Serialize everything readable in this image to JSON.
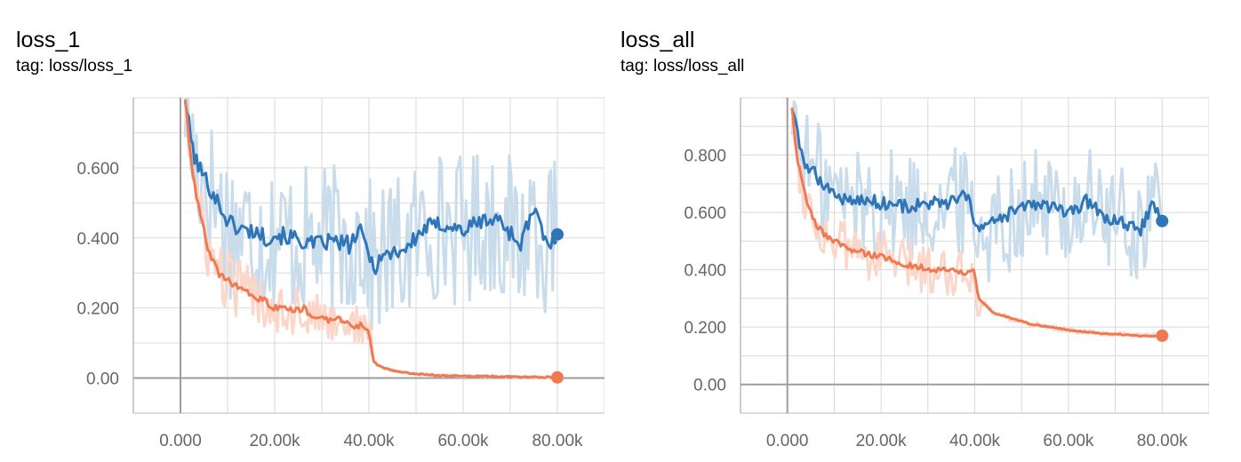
{
  "colors": {
    "blue": "#2f76b8",
    "blue_light": "#c9dcec",
    "orange": "#ef7a52",
    "orange_light": "#fcd6c8",
    "grid": "#d9d9d9",
    "zero_axis": "#9e9e9e",
    "axis": "#bbbbbb",
    "tick_text": "#666666"
  },
  "chart_data": [
    {
      "type": "line",
      "title": "loss_1",
      "subtitle": "tag: loss/loss_1",
      "xlabel": "",
      "ylabel": "",
      "xlim": [
        -10000,
        90000
      ],
      "ylim": [
        -0.1,
        0.8
      ],
      "xticks": [
        0,
        20000,
        40000,
        60000,
        80000
      ],
      "xtick_labels": [
        "0.000",
        "20.00k",
        "40.00k",
        "60.00k",
        "80.00k"
      ],
      "yticks": [
        0,
        0.2,
        0.4,
        0.6
      ],
      "ytick_labels": [
        "0.00",
        "0.200",
        "0.400",
        "0.600"
      ],
      "grid": true,
      "legend": "none",
      "series": [
        {
          "color": "#2f76b8",
          "raw_color": "#c9dcec",
          "x": [
            1000,
            2000,
            3000,
            4000,
            6000,
            8000,
            10000,
            12000,
            14000,
            16000,
            18000,
            20000,
            24000,
            28000,
            32000,
            36000,
            38000,
            40000,
            41000,
            42000,
            45000,
            48000,
            52000,
            56000,
            60000,
            64000,
            68000,
            72000,
            75000,
            78000,
            80000
          ],
          "y": [
            0.8,
            0.7,
            0.63,
            0.6,
            0.55,
            0.5,
            0.45,
            0.43,
            0.42,
            0.42,
            0.4,
            0.41,
            0.4,
            0.38,
            0.39,
            0.38,
            0.42,
            0.36,
            0.31,
            0.34,
            0.36,
            0.37,
            0.43,
            0.44,
            0.42,
            0.45,
            0.45,
            0.38,
            0.48,
            0.37,
            0.41
          ]
        },
        {
          "color": "#ef7a52",
          "raw_color": "#fcd6c8",
          "x": [
            1000,
            2000,
            3000,
            4000,
            5000,
            6000,
            8000,
            10000,
            12000,
            14000,
            16000,
            18000,
            20000,
            22000,
            24000,
            26000,
            28000,
            30000,
            32000,
            34000,
            36000,
            38000,
            40000,
            40500,
            41000,
            42000,
            44000,
            46000,
            50000,
            55000,
            60000,
            65000,
            70000,
            75000,
            80000
          ],
          "y": [
            0.8,
            0.65,
            0.55,
            0.48,
            0.42,
            0.36,
            0.3,
            0.28,
            0.26,
            0.25,
            0.23,
            0.22,
            0.2,
            0.21,
            0.19,
            0.2,
            0.18,
            0.17,
            0.16,
            0.17,
            0.15,
            0.15,
            0.14,
            0.08,
            0.05,
            0.035,
            0.025,
            0.02,
            0.012,
            0.008,
            0.006,
            0.005,
            0.004,
            0.003,
            0.002
          ]
        }
      ]
    },
    {
      "type": "line",
      "title": "loss_all",
      "subtitle": "tag: loss/loss_all",
      "xlabel": "",
      "ylabel": "",
      "xlim": [
        -10000,
        90000
      ],
      "ylim": [
        -0.1,
        1.0
      ],
      "xticks": [
        0,
        20000,
        40000,
        60000,
        80000
      ],
      "xtick_labels": [
        "0.000",
        "20.00k",
        "40.00k",
        "60.00k",
        "80.00k"
      ],
      "yticks": [
        0,
        0.2,
        0.4,
        0.6,
        0.8
      ],
      "ytick_labels": [
        "0.00",
        "0.200",
        "0.400",
        "0.600",
        "0.800"
      ],
      "grid": true,
      "legend": "none",
      "series": [
        {
          "color": "#2f76b8",
          "raw_color": "#c9dcec",
          "x": [
            1000,
            2000,
            3000,
            4000,
            6000,
            8000,
            10000,
            12000,
            15000,
            18000,
            22000,
            26000,
            30000,
            34000,
            36000,
            38000,
            40000,
            41000,
            42000,
            45000,
            48000,
            52000,
            56000,
            60000,
            64000,
            68000,
            72000,
            75000,
            78000,
            80000
          ],
          "y": [
            0.97,
            0.88,
            0.8,
            0.77,
            0.73,
            0.7,
            0.66,
            0.65,
            0.64,
            0.64,
            0.63,
            0.62,
            0.63,
            0.63,
            0.64,
            0.66,
            0.58,
            0.54,
            0.55,
            0.57,
            0.6,
            0.63,
            0.62,
            0.59,
            0.64,
            0.58,
            0.56,
            0.53,
            0.63,
            0.57
          ]
        },
        {
          "color": "#ef7a52",
          "raw_color": "#fcd6c8",
          "x": [
            1000,
            2000,
            3000,
            4000,
            5000,
            6000,
            8000,
            10000,
            12000,
            14000,
            16000,
            18000,
            20000,
            24000,
            28000,
            32000,
            36000,
            38000,
            40000,
            40500,
            41000,
            42000,
            44000,
            48000,
            52000,
            56000,
            60000,
            65000,
            70000,
            75000,
            80000
          ],
          "y": [
            0.97,
            0.8,
            0.72,
            0.65,
            0.6,
            0.56,
            0.52,
            0.5,
            0.48,
            0.47,
            0.46,
            0.45,
            0.45,
            0.42,
            0.41,
            0.4,
            0.4,
            0.39,
            0.39,
            0.33,
            0.3,
            0.28,
            0.25,
            0.23,
            0.21,
            0.2,
            0.19,
            0.18,
            0.175,
            0.17,
            0.17
          ]
        }
      ]
    }
  ]
}
